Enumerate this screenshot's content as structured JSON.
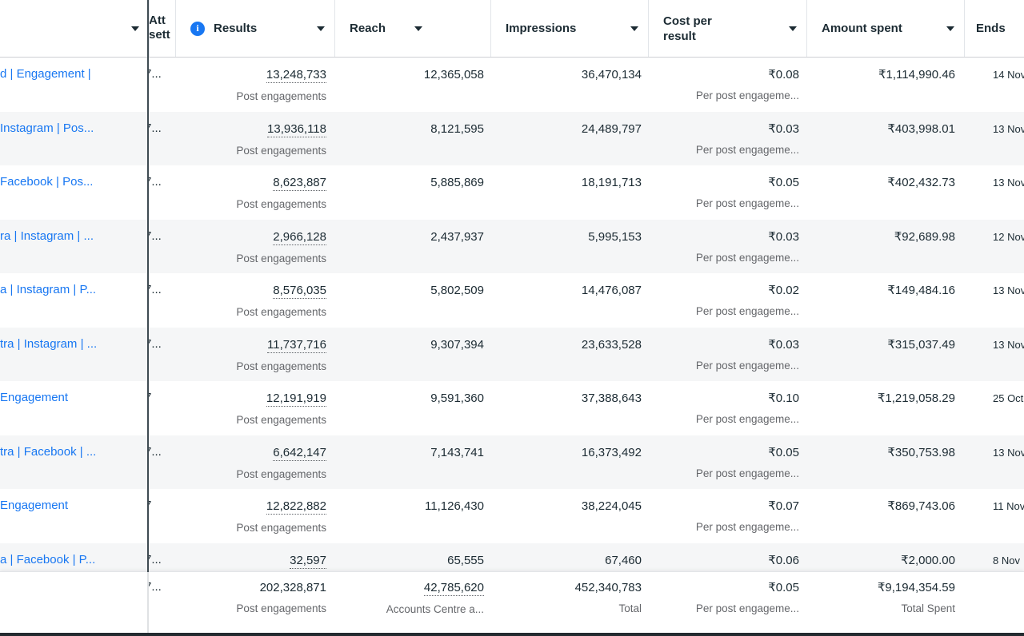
{
  "colors": {
    "link_blue": "#1877F2",
    "info_icon_blue": "#1877F2",
    "row_stripe": "#f5f6f7"
  },
  "header": {
    "name_col": {
      "label": ""
    },
    "att": {
      "line1": "Att",
      "line2": "sett"
    },
    "results": {
      "label": "Results"
    },
    "reach": {
      "label": "Reach"
    },
    "impressions": {
      "label": "Impressions"
    },
    "cost": {
      "line1": "Cost per",
      "line2": "result"
    },
    "amount": {
      "label": "Amount spent"
    },
    "ends": {
      "label": "Ends"
    }
  },
  "rows": [
    {
      "name": "d | Engagement |",
      "attr": "7...",
      "results": "13,248,733",
      "results_sub": "Post engagements",
      "reach": "12,365,058",
      "impressions": "36,470,134",
      "cpr": "₹0.08",
      "cpr_sub": "Per post engageme...",
      "spent": "₹1,114,990.46",
      "ends": "14 Nov"
    },
    {
      "name": "Instagram | Pos...",
      "attr": "7...",
      "results": "13,936,118",
      "results_sub": "Post engagements",
      "reach": "8,121,595",
      "impressions": "24,489,797",
      "cpr": "₹0.03",
      "cpr_sub": "Per post engageme...",
      "spent": "₹403,998.01",
      "ends": "13 Nov"
    },
    {
      "name": "Facebook | Pos...",
      "attr": "7...",
      "results": "8,623,887",
      "results_sub": "Post engagements",
      "reach": "5,885,869",
      "impressions": "18,191,713",
      "cpr": "₹0.05",
      "cpr_sub": "Per post engageme...",
      "spent": "₹402,432.73",
      "ends": "13 Nov"
    },
    {
      "name": "ra | Instagram | ...",
      "attr": "7...",
      "results": "2,966,128",
      "results_sub": "Post engagements",
      "reach": "2,437,937",
      "impressions": "5,995,153",
      "cpr": "₹0.03",
      "cpr_sub": "Per post engageme...",
      "spent": "₹92,689.98",
      "ends": "12 Nov"
    },
    {
      "name": "a | Instagram | P...",
      "attr": "7...",
      "results": "8,576,035",
      "results_sub": "Post engagements",
      "reach": "5,802,509",
      "impressions": "14,476,087",
      "cpr": "₹0.02",
      "cpr_sub": "Per post engageme...",
      "spent": "₹149,484.16",
      "ends": "13 Nov"
    },
    {
      "name": "tra | Instagram | ...",
      "attr": "7...",
      "results": "11,737,716",
      "results_sub": "Post engagements",
      "reach": "9,307,394",
      "impressions": "23,633,528",
      "cpr": "₹0.03",
      "cpr_sub": "Per post engageme...",
      "spent": "₹315,037.49",
      "ends": "13 Nov"
    },
    {
      "name": "Engagement",
      "attr": "7",
      "results": "12,191,919",
      "results_sub": "Post engagements",
      "reach": "9,591,360",
      "impressions": "37,388,643",
      "cpr": "₹0.10",
      "cpr_sub": "Per post engageme...",
      "spent": "₹1,219,058.29",
      "ends": "25 Oct"
    },
    {
      "name": "tra | Facebook | ...",
      "attr": "7...",
      "results": "6,642,147",
      "results_sub": "Post engagements",
      "reach": "7,143,741",
      "impressions": "16,373,492",
      "cpr": "₹0.05",
      "cpr_sub": "Per post engageme...",
      "spent": "₹350,753.98",
      "ends": "13 Nov"
    },
    {
      "name": "Engagement",
      "attr": "7",
      "results": "12,822,882",
      "results_sub": "Post engagements",
      "reach": "11,126,430",
      "impressions": "38,224,045",
      "cpr": "₹0.07",
      "cpr_sub": "Per post engageme...",
      "spent": "₹869,743.06",
      "ends": "11 Nov"
    },
    {
      "name": "a | Facebook | P...",
      "attr": "7...",
      "results": "32,597",
      "results_sub": "Post engagements",
      "reach": "65,555",
      "impressions": "67,460",
      "cpr": "₹0.06",
      "cpr_sub": "Per post engageme...",
      "spent": "₹2,000.00",
      "ends": "8 Nov"
    }
  ],
  "total": {
    "attr": "7...",
    "results": "202,328,871",
    "results_sub": "Post engagements",
    "reach": "42,785,620",
    "reach_sub": "Accounts Centre a...",
    "impressions": "452,340,783",
    "impressions_sub": "Total",
    "cpr": "₹0.05",
    "cpr_sub": "Per post engageme...",
    "spent": "₹9,194,354.59",
    "spent_sub": "Total Spent"
  }
}
